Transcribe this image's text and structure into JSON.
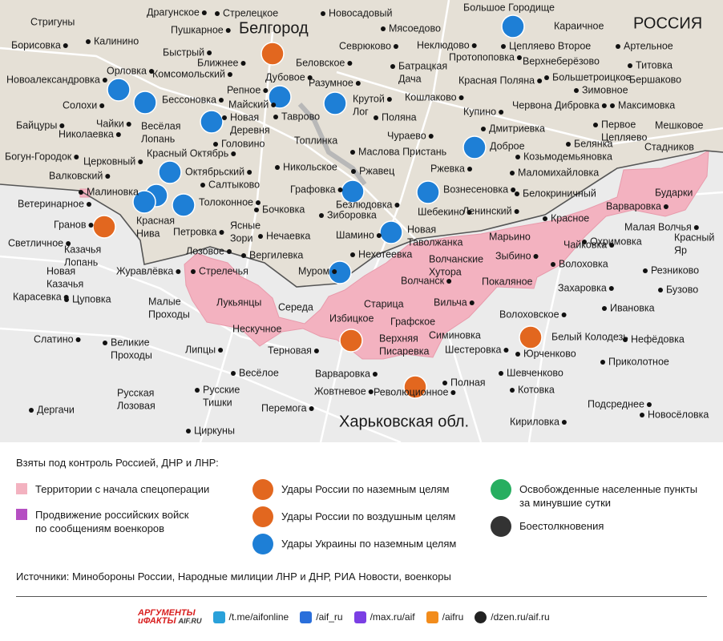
{
  "map": {
    "region_labels": {
      "russia": "РОССИЯ",
      "belgorod": "Белгород",
      "kharkiv": "Харьковская обл."
    },
    "places": [
      "Стригуны",
      "Борисовка",
      "Калинино",
      "Драгунское",
      "Стрелецкое",
      "Пушкарное",
      "Новосадовый",
      "Мясоедово",
      "Большое Городище",
      "Караичное",
      "Севрюково",
      "Неклюдово",
      "Цепляево Второе",
      "Артельное",
      "Быстрый",
      "Ближнее",
      "Беловское",
      [
        "Батрацкая",
        "Дача"
      ],
      "Протопоповка",
      "Верхнеберёзово",
      "Титовка",
      "Орловка",
      "Новоалександровка",
      "Комсомольский",
      "Дубовое",
      "Разумное",
      "Красная Поляна",
      "Большетроицкое",
      "Бершаково",
      "Репное",
      "Зимовное",
      "Бессоновка",
      "Майский",
      [
        "Крутой",
        "Лог"
      ],
      "Кошлаково",
      "Купино",
      "Червона Дибровка",
      "Максимовка",
      "Солохи",
      [
        "Новая",
        "Деревня"
      ],
      "Таврово",
      "Поляна",
      "Байцуры",
      "Чайки",
      "Николаевка",
      [
        "Весёлая",
        "Лопань"
      ],
      "Дмитриевка",
      [
        "Первое",
        "Цепляево"
      ],
      "Мешковое",
      "Головино",
      "Чураево",
      "Белянка",
      "Стадников",
      "Богун-Городок",
      "Церковный",
      "Красный Октябрь",
      "Топлинка",
      "Маслова Пристань",
      "Доброе",
      "Козьмодемьяновка",
      "Валковский",
      "Октябрьский",
      "Никольское",
      "Ржавец",
      "Ржевка",
      "Маломихайловка",
      "Малиновка",
      "Салтыково",
      "Графовка",
      "Безлюдовка",
      "Вознесеновка",
      "Белокриничный",
      "Бударки",
      "Ветеринарное",
      "Толоконное",
      "Бочковка",
      "Шебекино",
      "Зиборовка",
      "Ленинский",
      "Варваровка",
      "Гранов",
      [
        "Красная",
        "Нива"
      ],
      [
        "Ясные",
        "Зори"
      ],
      "Красное",
      "Малая Волчья",
      [
        "Красный",
        "Яр"
      ],
      "Петровка",
      "Нечаевка",
      "Шамино",
      [
        "Новая",
        "Таволжанка"
      ],
      "Марьино",
      "Светличное",
      [
        "Казачья",
        "Лопань"
      ],
      "Чайковка",
      "Охримовка",
      "Лозовое",
      "Вергилевка",
      "Нехотеевка",
      [
        "Волчанские",
        "Хутора"
      ],
      "Зыбино",
      "Резниково",
      "Журавлёвка",
      "Стрелечья",
      "Муром",
      "Волоховка",
      [
        "Новая",
        "Казачья"
      ],
      "Покаляное",
      "Волчанск",
      "Захаровка",
      "Бузово",
      "Карасевка",
      "Цуповка",
      [
        "Малые",
        "Проходы"
      ],
      "Лукьянцы",
      "Старица",
      "Вильча",
      "Ивановка",
      "Середа",
      "Волоховское",
      "Избицкое",
      "Графское",
      "Нескучное",
      "Симиновка",
      "Белый Колодезь",
      "Нефёдовка",
      "Слатино",
      [
        "Великие",
        "Проходы"
      ],
      [
        "Верхняя",
        "Писаревка"
      ],
      "Шестеровка",
      "Юрченково",
      "Терновая",
      "Липцы",
      "Приколотное",
      "Весёлое",
      "Варваровка",
      "Шевченково",
      "Полная",
      [
        "Русские",
        "Тишки"
      ],
      [
        "Русская",
        "Лозовая"
      ],
      "Жовтневое",
      "Революционное",
      "Котовка",
      "Подсреднее",
      "Дергачи",
      "Перемога",
      "Новосёловка",
      "Кириловка",
      "Циркуны"
    ]
  },
  "legend": {
    "title": "Взяты под контроль Россией, ДНР и ЛНР:",
    "items": [
      "Территории с начала спецоперации",
      [
        "Продвижение российских войск",
        "по сообщениям военкоров"
      ],
      "Удары России по наземным целям",
      "Удары России по воздушным целям",
      "Удары Украины по наземным целям",
      [
        "Освобожденные населенные пункты",
        "за минувшие сутки"
      ],
      "Боестолкновения"
    ]
  },
  "sources": "Источники: Минобороны России, Народные милиции ЛНР и ДНР, РИА Новости, военкоры",
  "footer": {
    "logo": [
      "АРГУМЕНТЫ",
      "иФАКТЫ",
      "AIF.RU"
    ],
    "links": [
      "/t.me/aifonline",
      "/aif_ru",
      "/max.ru/aif",
      "/aifru",
      "/dzen.ru/aif.ru"
    ]
  }
}
